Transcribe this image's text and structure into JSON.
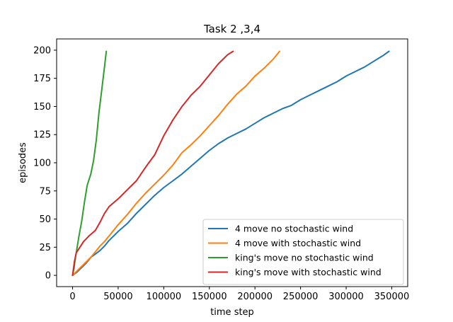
{
  "chart_data": {
    "type": "line",
    "title": "Task 2 ,3,4",
    "xlabel": "time step",
    "ylabel": "episodes",
    "xlim": [
      -17500,
      367500
    ],
    "ylim": [
      -10,
      210
    ],
    "xticks": [
      0,
      50000,
      100000,
      150000,
      200000,
      250000,
      300000,
      350000
    ],
    "yticks": [
      0,
      25,
      50,
      75,
      100,
      125,
      150,
      175,
      200
    ],
    "grid": false,
    "legend_position": "lower-right",
    "series": [
      {
        "name": "4 move no stochastic wind",
        "color": "#1f77b4",
        "points": [
          [
            0,
            0
          ],
          [
            5000,
            3
          ],
          [
            10000,
            7
          ],
          [
            15000,
            11
          ],
          [
            20000,
            16
          ],
          [
            25000,
            19
          ],
          [
            30000,
            22
          ],
          [
            35000,
            26
          ],
          [
            40000,
            31
          ],
          [
            50000,
            39
          ],
          [
            60000,
            46
          ],
          [
            70000,
            55
          ],
          [
            80000,
            63
          ],
          [
            90000,
            71
          ],
          [
            100000,
            78
          ],
          [
            110000,
            84
          ],
          [
            120000,
            90
          ],
          [
            130000,
            97
          ],
          [
            140000,
            104
          ],
          [
            150000,
            111
          ],
          [
            160000,
            117
          ],
          [
            170000,
            122
          ],
          [
            180000,
            126
          ],
          [
            190000,
            130
          ],
          [
            200000,
            135
          ],
          [
            210000,
            140
          ],
          [
            220000,
            144
          ],
          [
            230000,
            148
          ],
          [
            240000,
            151
          ],
          [
            250000,
            156
          ],
          [
            260000,
            160
          ],
          [
            270000,
            164
          ],
          [
            280000,
            168
          ],
          [
            290000,
            172
          ],
          [
            300000,
            177
          ],
          [
            310000,
            181
          ],
          [
            320000,
            185
          ],
          [
            330000,
            190
          ],
          [
            340000,
            195
          ],
          [
            347000,
            199
          ]
        ]
      },
      {
        "name": "4 move with stochastic wind",
        "color": "#ff7f0e",
        "points": [
          [
            0,
            0
          ],
          [
            5000,
            4
          ],
          [
            10000,
            8
          ],
          [
            15000,
            12
          ],
          [
            20000,
            16
          ],
          [
            25000,
            21
          ],
          [
            30000,
            26
          ],
          [
            35000,
            30
          ],
          [
            40000,
            35
          ],
          [
            50000,
            45
          ],
          [
            60000,
            54
          ],
          [
            70000,
            64
          ],
          [
            80000,
            73
          ],
          [
            90000,
            81
          ],
          [
            100000,
            89
          ],
          [
            110000,
            98
          ],
          [
            120000,
            109
          ],
          [
            130000,
            116
          ],
          [
            140000,
            124
          ],
          [
            150000,
            133
          ],
          [
            160000,
            142
          ],
          [
            170000,
            152
          ],
          [
            180000,
            161
          ],
          [
            190000,
            168
          ],
          [
            200000,
            177
          ],
          [
            210000,
            184
          ],
          [
            220000,
            192
          ],
          [
            227000,
            199
          ]
        ]
      },
      {
        "name": "king's move no stochastic wind",
        "color": "#2ca02c",
        "points": [
          [
            0,
            0
          ],
          [
            1500,
            6
          ],
          [
            3000,
            15
          ],
          [
            5000,
            25
          ],
          [
            7000,
            35
          ],
          [
            10000,
            48
          ],
          [
            13000,
            65
          ],
          [
            16000,
            80
          ],
          [
            20000,
            90
          ],
          [
            23000,
            102
          ],
          [
            26000,
            120
          ],
          [
            29000,
            145
          ],
          [
            32000,
            165
          ],
          [
            35000,
            185
          ],
          [
            37000,
            199
          ]
        ]
      },
      {
        "name": "king's move with stochastic wind",
        "color": "#d62728",
        "points": [
          [
            0,
            0
          ],
          [
            2000,
            12
          ],
          [
            4000,
            20
          ],
          [
            8000,
            25
          ],
          [
            12000,
            30
          ],
          [
            18000,
            35
          ],
          [
            25000,
            40
          ],
          [
            30000,
            47
          ],
          [
            35000,
            55
          ],
          [
            40000,
            61
          ],
          [
            50000,
            68
          ],
          [
            60000,
            76
          ],
          [
            70000,
            84
          ],
          [
            80000,
            96
          ],
          [
            90000,
            107
          ],
          [
            100000,
            124
          ],
          [
            110000,
            138
          ],
          [
            120000,
            150
          ],
          [
            130000,
            160
          ],
          [
            140000,
            168
          ],
          [
            150000,
            178
          ],
          [
            160000,
            188
          ],
          [
            170000,
            196
          ],
          [
            176000,
            199
          ]
        ]
      }
    ]
  }
}
